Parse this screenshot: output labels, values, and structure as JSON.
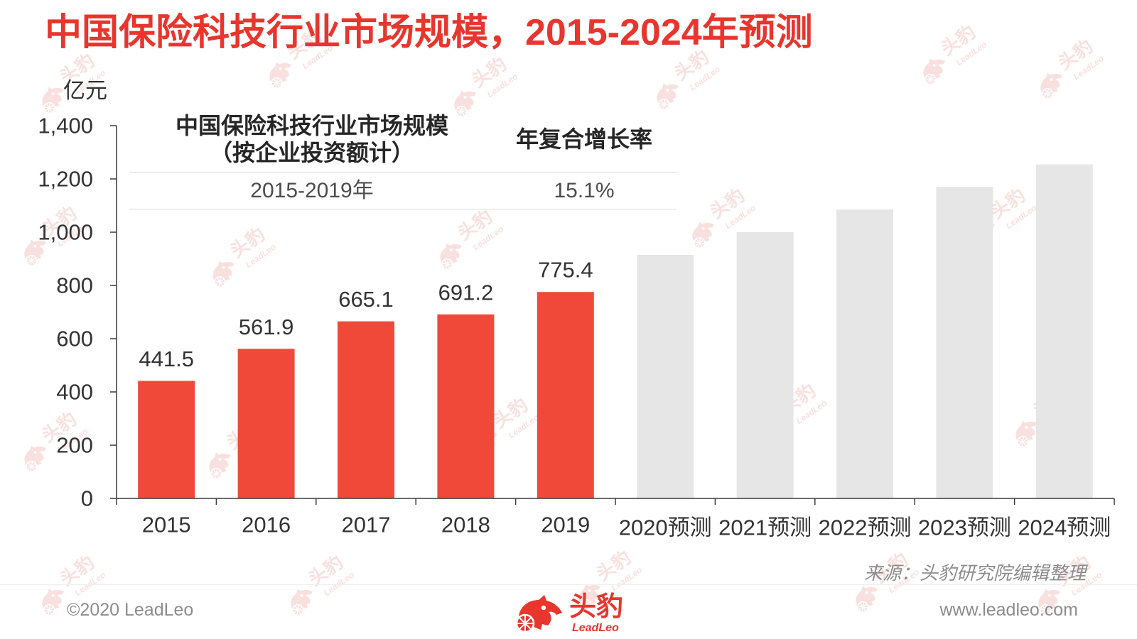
{
  "colors": {
    "accent": "#e8352d",
    "bar_actual": "#f0493a",
    "bar_forecast": "#e6e6e6",
    "axis": "#3a3a3a",
    "watermark": "#f0b7b1"
  },
  "summary_table": {
    "header": {
      "metric_line1": "中国保险科技行业市场规模",
      "metric_line2": "（按企业投资额计）",
      "cagr": "年复合增长率"
    },
    "rows": [
      {
        "period": "2015-2019年",
        "cagr": "15.1%"
      }
    ]
  },
  "source": "来源：头豹研究院编辑整理",
  "footer": {
    "copyright": "©2020 LeadLeo",
    "website": "www.leadleo.com"
  },
  "logo": {
    "name_cn": "头豹",
    "name_en": "LeadLeo",
    "icon": "leopard-logo-icon"
  },
  "watermark": {
    "name_cn": "头豹",
    "name_en": "LeadLeo",
    "icon": "leopard-logo-icon"
  },
  "chart_data": {
    "type": "bar",
    "title": "中国保险科技行业市场规模，2015-2024年预测",
    "ylabel": "亿元",
    "ylim": [
      0,
      1400
    ],
    "yticks": [
      0,
      200,
      400,
      600,
      800,
      1000,
      1200,
      1400
    ],
    "ytick_labels": [
      "0",
      "200",
      "400",
      "600",
      "800",
      "1,000",
      "1,200",
      "1,400"
    ],
    "categories": [
      "2015",
      "2016",
      "2017",
      "2018",
      "2019",
      "2020预测",
      "2021预测",
      "2022预测",
      "2023预测",
      "2024预测"
    ],
    "series": [
      {
        "values": [
          441.5,
          561.9,
          665.1,
          691.2,
          775.4,
          915,
          1000,
          1085,
          1170,
          1255
        ],
        "forecast": [
          false,
          false,
          false,
          false,
          false,
          true,
          true,
          true,
          true,
          true
        ],
        "data_labels": [
          "441.5",
          "561.9",
          "665.1",
          "691.2",
          "775.4",
          null,
          null,
          null,
          null,
          null
        ]
      }
    ],
    "grid": false,
    "legend": "none"
  }
}
